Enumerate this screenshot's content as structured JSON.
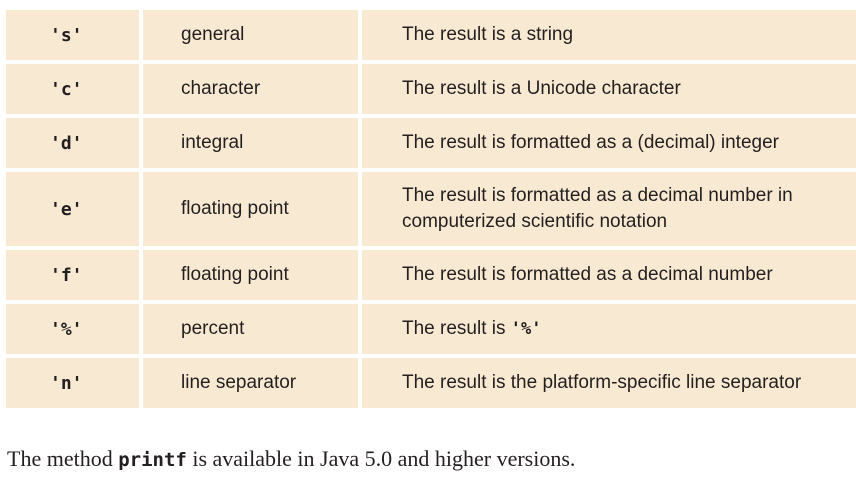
{
  "rows": [
    {
      "code": "'s'",
      "category": "general",
      "desc": "The result is a string"
    },
    {
      "code": "'c'",
      "category": "character",
      "desc": "The result is a Unicode character"
    },
    {
      "code": "'d'",
      "category": "integral",
      "desc": "The result is formatted as a (decimal) integer"
    },
    {
      "code": "'e'",
      "category": "floating point",
      "desc_line1": "The result is formatted as a decimal number in",
      "desc_line2": "computerized scientific notation"
    },
    {
      "code": "'f'",
      "category": "floating point",
      "desc": "The result is formatted as a decimal number"
    },
    {
      "code": "'%'",
      "category": "percent",
      "desc_prefix": "The result is",
      "desc_code": "'%'"
    },
    {
      "code": "'n'",
      "category": "line separator",
      "desc": "The result is the platform-specific line separator"
    }
  ],
  "caption": {
    "prefix": "The method",
    "code": "printf",
    "suffix": "is available in Java 5.0 and higher versions."
  }
}
